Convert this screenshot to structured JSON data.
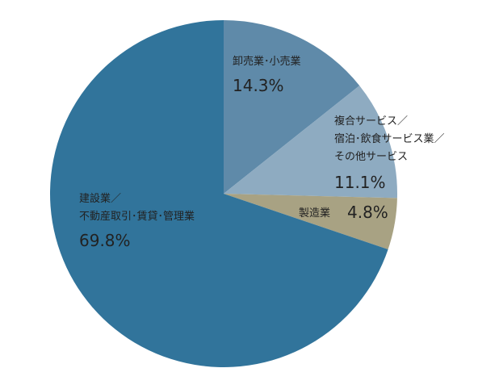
{
  "chart_data": {
    "type": "pie",
    "categories": [
      "卸売業･小売業",
      "複合サービス／\n宿泊･飲食サービス業／\nその他サービス",
      "製造業",
      "建設業／\n不動産取引･賃貸･管理業"
    ],
    "values": [
      14.3,
      11.1,
      4.8,
      69.8
    ],
    "value_labels": [
      "14.3%",
      "11.1%",
      "4.8%",
      "69.8%"
    ],
    "colors": [
      "#5f8aa9",
      "#8eabc1",
      "#a8a283",
      "#31749b"
    ]
  }
}
